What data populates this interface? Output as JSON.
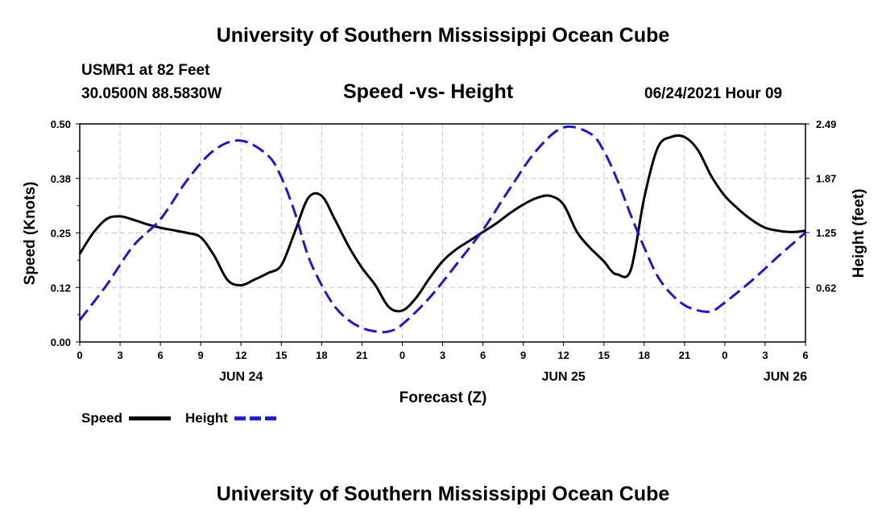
{
  "header": {
    "title": "University of Southern Mississippi Ocean Cube",
    "station": "USMR1 at 82 Feet",
    "coords": "30.0500N  88.5830W",
    "chart_title": "Speed -vs- Height",
    "datetime": "06/24/2021 Hour 09"
  },
  "footer": {
    "title": "University of Southern Mississippi Ocean Cube"
  },
  "colors": {
    "speed": "#000000",
    "height": "#1a1ad0",
    "grid": "#c8c8c8"
  },
  "chart_data": {
    "type": "line",
    "title": "Speed -vs- Height",
    "xlabel": "Forecast (Z)",
    "ylabel": "Speed (Knots)",
    "y2label": "Height (feet)",
    "xlim": [
      0,
      54
    ],
    "ylim": [
      0,
      0.5
    ],
    "y2lim": [
      0,
      2.49
    ],
    "x_ticks": [
      0,
      3,
      6,
      9,
      12,
      15,
      18,
      21,
      24,
      27,
      30,
      33,
      36,
      39,
      42,
      45,
      48,
      51,
      54
    ],
    "x_tick_labels": [
      "0",
      "3",
      "6",
      "9",
      "12",
      "15",
      "18",
      "21",
      "0",
      "3",
      "6",
      "9",
      "12",
      "15",
      "18",
      "21",
      "0",
      "3",
      "6"
    ],
    "y_ticks": [
      0,
      0.125,
      0.25,
      0.375,
      0.5
    ],
    "y_tick_labels": [
      "0.00",
      "0.12",
      "0.25",
      "0.38",
      "0.50"
    ],
    "y2_ticks": [
      0.62,
      1.25,
      1.87,
      2.49
    ],
    "y2_tick_labels": [
      "0.62",
      "1.25",
      "1.87",
      "2.49"
    ],
    "date_labels": [
      {
        "x": 12,
        "label": "JUN 24"
      },
      {
        "x": 36,
        "label": "JUN 25"
      },
      {
        "x": 52.5,
        "label": "JUN 26"
      }
    ],
    "grid": true,
    "legend_position": "bottom-left",
    "series": [
      {
        "name": "Speed",
        "axis": "left",
        "style": "solid",
        "x": [
          0,
          1,
          2,
          3,
          4,
          5,
          6,
          7,
          8,
          9,
          10,
          11,
          12,
          13,
          14,
          15,
          16,
          17,
          18,
          19,
          20,
          21,
          22,
          23,
          24,
          25,
          26,
          27,
          28,
          29,
          30,
          31,
          32,
          33,
          34,
          35,
          36,
          37,
          38,
          39,
          39.5,
          40,
          41,
          42,
          43,
          44,
          45,
          46,
          47,
          48,
          49,
          50,
          51,
          52,
          53,
          54
        ],
        "values": [
          0.202,
          0.25,
          0.282,
          0.288,
          0.28,
          0.27,
          0.262,
          0.256,
          0.25,
          0.24,
          0.198,
          0.142,
          0.13,
          0.143,
          0.158,
          0.176,
          0.252,
          0.33,
          0.335,
          0.28,
          0.22,
          0.17,
          0.13,
          0.08,
          0.072,
          0.1,
          0.145,
          0.185,
          0.212,
          0.232,
          0.252,
          0.272,
          0.295,
          0.315,
          0.33,
          0.335,
          0.315,
          0.252,
          0.215,
          0.185,
          0.165,
          0.155,
          0.165,
          0.33,
          0.445,
          0.47,
          0.47,
          0.44,
          0.38,
          0.335,
          0.305,
          0.28,
          0.262,
          0.255,
          0.252,
          0.255
        ]
      },
      {
        "name": "Height",
        "axis": "right",
        "style": "dashed",
        "x": [
          0,
          2,
          4,
          6,
          8,
          10,
          12,
          14,
          15,
          16,
          17,
          18,
          19,
          20,
          21,
          22,
          23,
          24,
          26,
          28,
          30,
          32,
          34,
          36,
          38,
          39,
          40,
          41,
          42,
          43,
          44,
          45,
          46,
          47,
          48,
          50,
          52,
          54
        ],
        "values": [
          0.25,
          0.65,
          1.1,
          1.4,
          1.85,
          2.19,
          2.3,
          2.13,
          1.88,
          1.48,
          0.98,
          0.65,
          0.4,
          0.25,
          0.16,
          0.12,
          0.12,
          0.2,
          0.5,
          0.88,
          1.28,
          1.75,
          2.19,
          2.45,
          2.38,
          2.18,
          1.85,
          1.45,
          1.08,
          0.75,
          0.55,
          0.42,
          0.36,
          0.35,
          0.45,
          0.7,
          0.98,
          1.25
        ]
      }
    ]
  }
}
